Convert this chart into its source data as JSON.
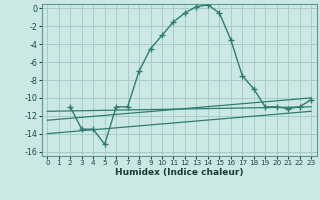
{
  "xlabel": "Humidex (Indice chaleur)",
  "background_color": "#cce8e5",
  "grid_color": "#a8ccc8",
  "line_color": "#2e7d72",
  "xlim": [
    -0.5,
    23.5
  ],
  "ylim": [
    -16.5,
    0.5
  ],
  "xticks": [
    0,
    1,
    2,
    3,
    4,
    5,
    6,
    7,
    8,
    9,
    10,
    11,
    12,
    13,
    14,
    15,
    16,
    17,
    18,
    19,
    20,
    21,
    22,
    23
  ],
  "yticks": [
    0,
    -2,
    -4,
    -6,
    -8,
    -10,
    -12,
    -14,
    -16
  ],
  "main_series": {
    "x": [
      2,
      3,
      4,
      5,
      6,
      7,
      8,
      9,
      10,
      11,
      12,
      13,
      14,
      15,
      16,
      17,
      18,
      19,
      20,
      21,
      22,
      23
    ],
    "y": [
      -11,
      -13.5,
      -13.5,
      -15.2,
      -11,
      -11,
      -7,
      -4.5,
      -3.0,
      -1.5,
      -0.5,
      0.2,
      0.4,
      -0.5,
      -3.5,
      -7.5,
      -9.0,
      -11.0,
      -11.0,
      -11.2,
      -11.0,
      -10.2
    ]
  },
  "flat_lines": [
    {
      "x": [
        0,
        23
      ],
      "y": [
        -11.5,
        -11.0
      ]
    },
    {
      "x": [
        0,
        23
      ],
      "y": [
        -12.5,
        -10.0
      ]
    },
    {
      "x": [
        0,
        23
      ],
      "y": [
        -14.0,
        -11.5
      ]
    }
  ]
}
